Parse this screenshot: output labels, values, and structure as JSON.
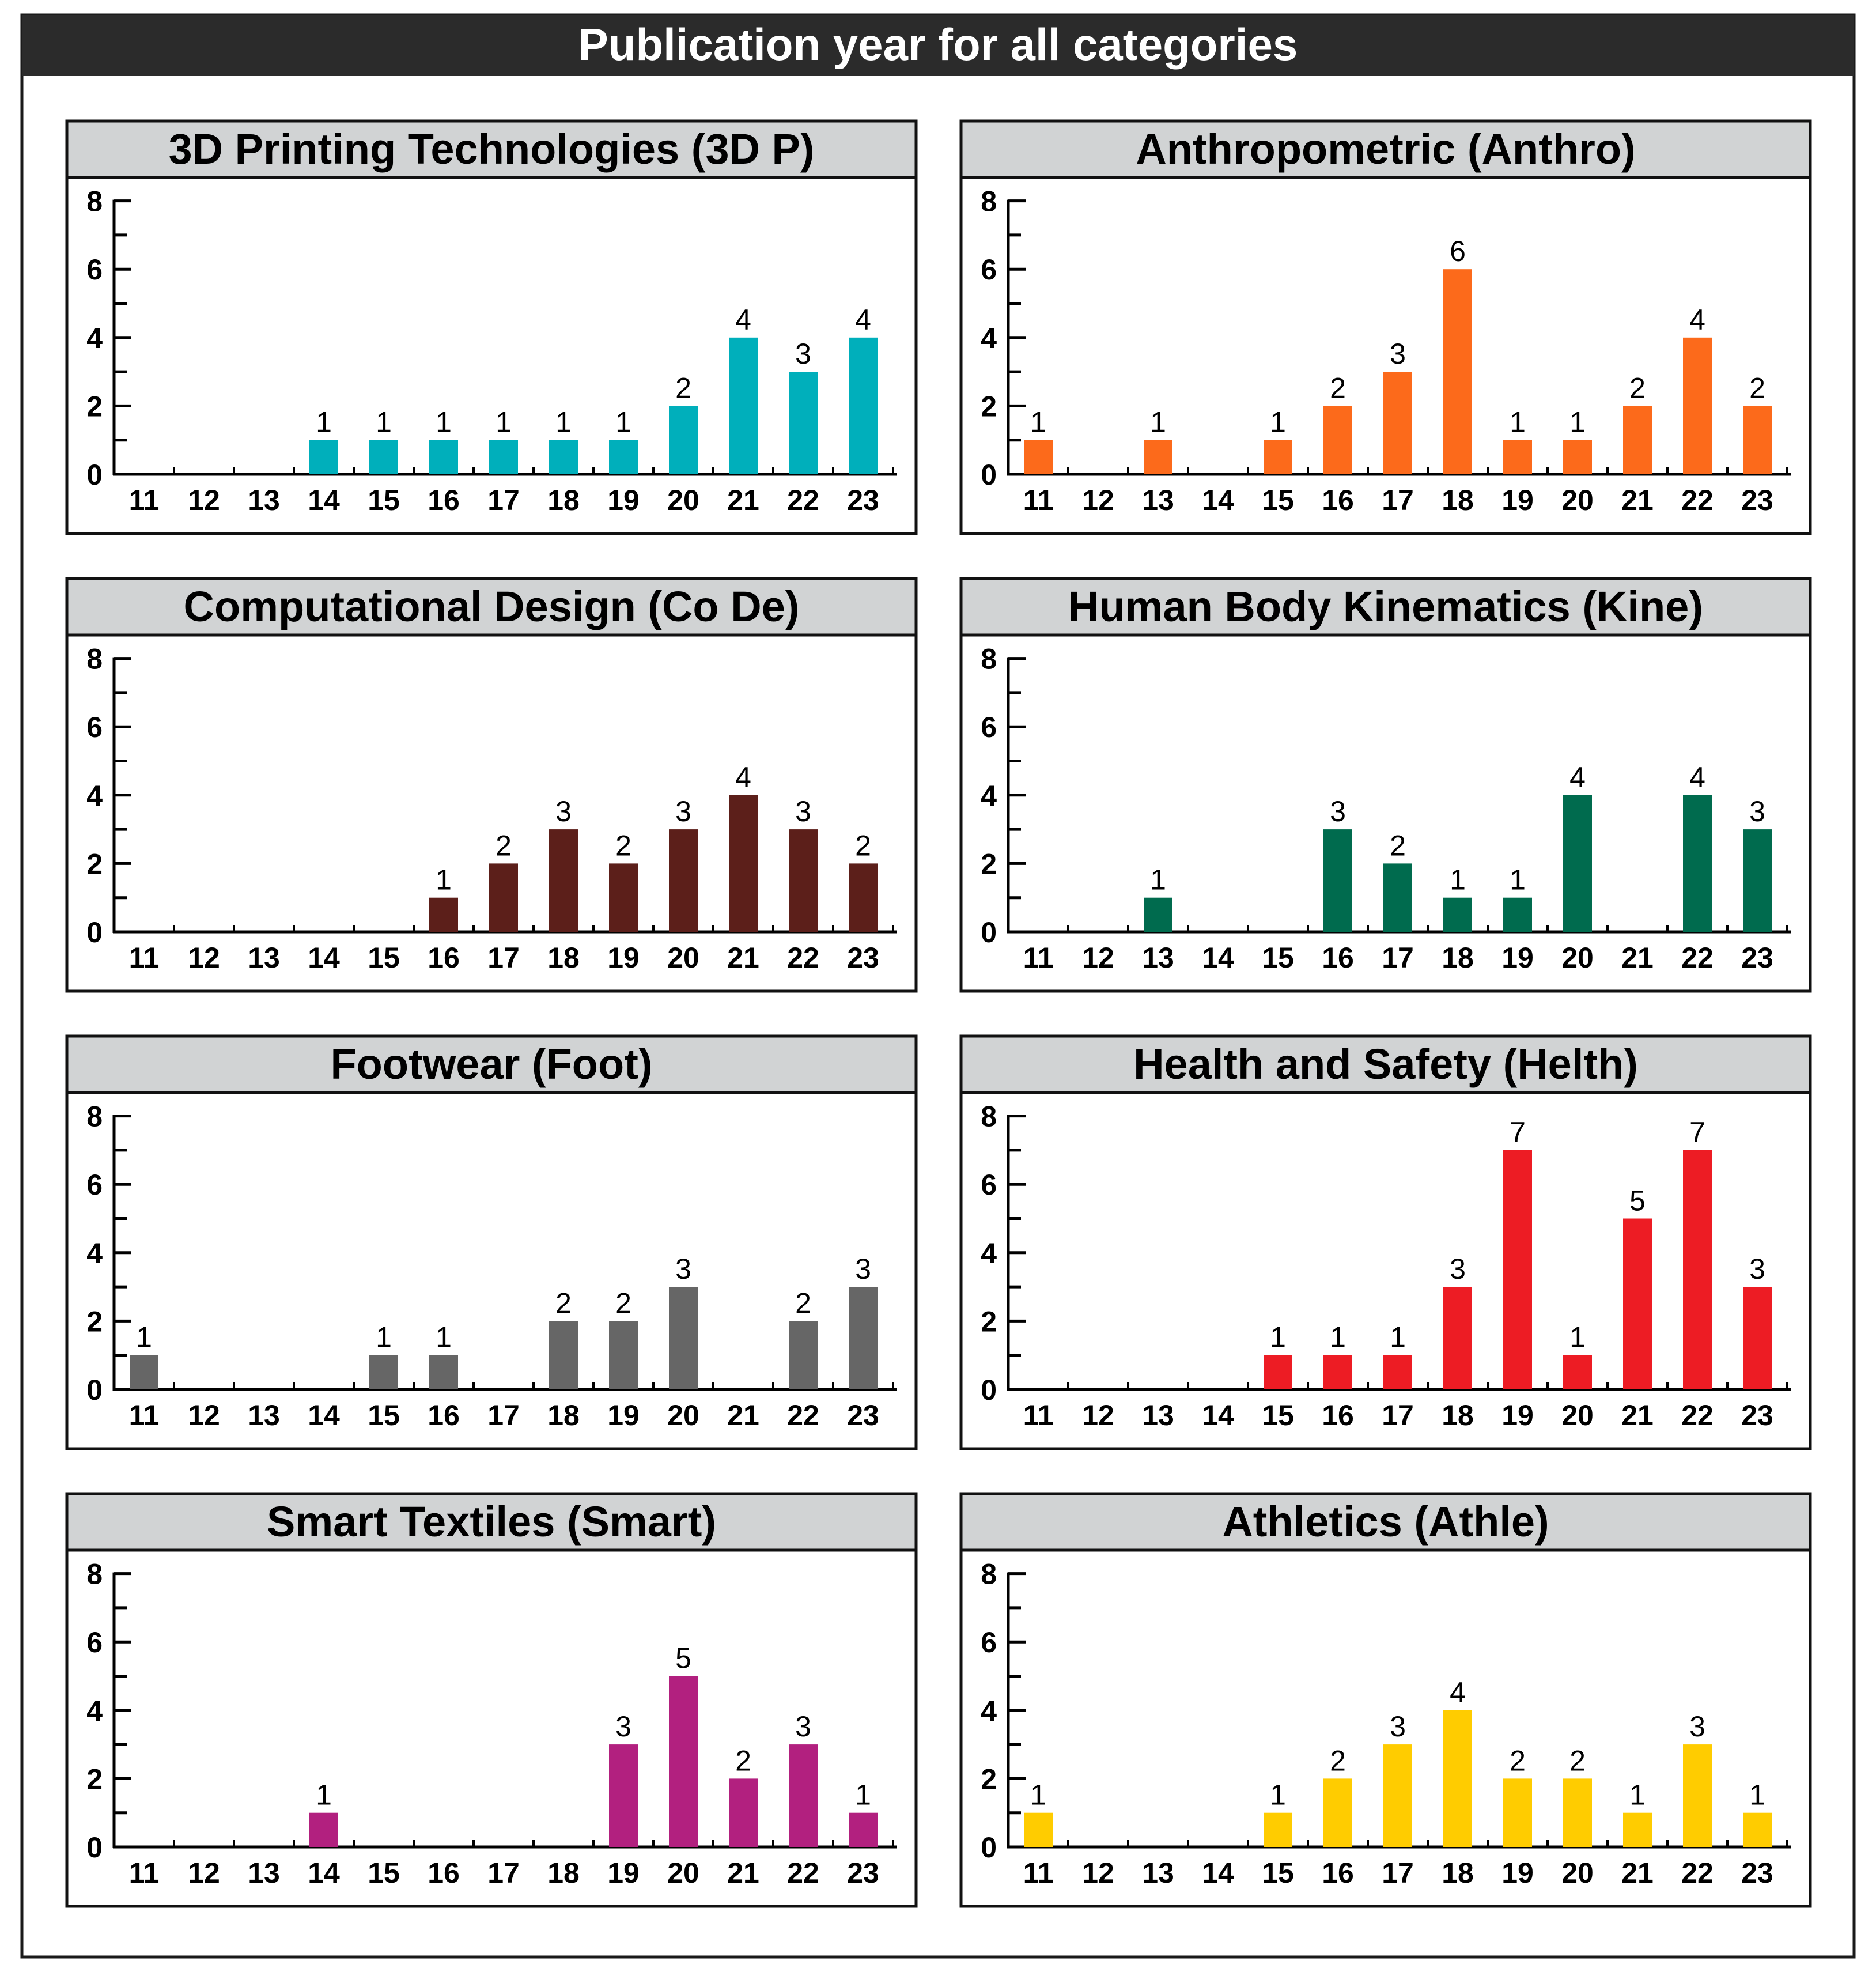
{
  "chart_data": {
    "type": "bar",
    "title": "Publication year for all categories",
    "categories": [
      "11",
      "12",
      "13",
      "14",
      "15",
      "16",
      "17",
      "18",
      "19",
      "20",
      "21",
      "22",
      "23"
    ],
    "ylim": [
      0,
      8
    ],
    "yticks": [
      "0",
      "2",
      "4",
      "6",
      "8"
    ],
    "panels": [
      {
        "title": "3D Printing Technologies (3D P)",
        "color": "#00AFBB",
        "values": [
          0,
          0,
          0,
          1,
          1,
          1,
          1,
          1,
          1,
          2,
          4,
          3,
          4
        ]
      },
      {
        "title": "Anthropometric (Anthro)",
        "color": "#FC6A1B",
        "values": [
          1,
          0,
          1,
          0,
          1,
          2,
          3,
          6,
          1,
          1,
          2,
          4,
          2
        ]
      },
      {
        "title": "Computational Design (Co De)",
        "color": "#5C1F1A",
        "values": [
          0,
          0,
          0,
          0,
          0,
          1,
          2,
          3,
          2,
          3,
          4,
          3,
          2
        ]
      },
      {
        "title": "Human Body Kinematics (Kine)",
        "color": "#006B4E",
        "values": [
          0,
          0,
          1,
          0,
          0,
          3,
          2,
          1,
          1,
          4,
          0,
          4,
          3
        ]
      },
      {
        "title": "Footwear (Foot)",
        "color": "#666666",
        "values": [
          1,
          0,
          0,
          0,
          1,
          1,
          0,
          2,
          2,
          3,
          0,
          2,
          3
        ]
      },
      {
        "title": "Health and Safety (Helth)",
        "color": "#ED1C24",
        "values": [
          0,
          0,
          0,
          0,
          1,
          1,
          1,
          3,
          7,
          1,
          5,
          7,
          3
        ]
      },
      {
        "title": "Smart Textiles (Smart)",
        "color": "#B2207F",
        "values": [
          0,
          0,
          0,
          1,
          0,
          0,
          0,
          0,
          3,
          5,
          2,
          3,
          1
        ]
      },
      {
        "title": "Athletics (Athle)",
        "color": "#FFCC00",
        "values": [
          1,
          0,
          0,
          0,
          1,
          2,
          3,
          4,
          2,
          2,
          1,
          3,
          1
        ]
      }
    ]
  }
}
